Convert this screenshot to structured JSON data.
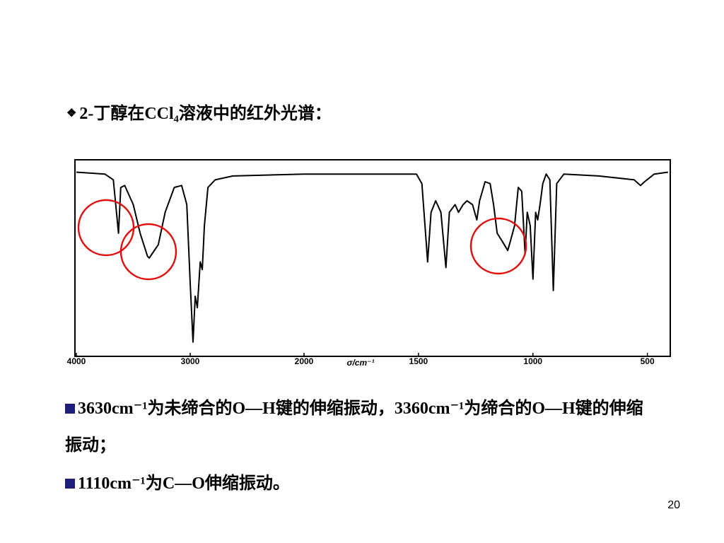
{
  "title": "2-丁醇在CCl₄溶液中的红外光谱：",
  "chart_data": {
    "type": "line",
    "xlabel": "σ/cm⁻¹",
    "xlim": [
      4000,
      400
    ],
    "x_scale_break": 2000,
    "ylim": [
      0,
      100
    ],
    "xticks": [
      4000,
      3000,
      2000,
      1500,
      1000,
      500
    ],
    "series": [
      {
        "color": "#000000",
        "x": [
          4000,
          3750,
          3675,
          3630,
          3610,
          3575,
          3500,
          3440,
          3375,
          3360,
          3280,
          3220,
          3140,
          3075,
          3030,
          3000,
          2975,
          2956,
          2937,
          2912,
          2894,
          2875,
          2844,
          2780,
          2625,
          2000,
          1509,
          1485,
          1469,
          1460,
          1445,
          1425,
          1402,
          1380,
          1365,
          1340,
          1325,
          1305,
          1288,
          1264,
          1245,
          1233,
          1209,
          1187,
          1172,
          1156,
          1135,
          1110,
          1098,
          1080,
          1064,
          1049,
          1034,
          1025,
          1012,
          1000,
          988,
          979,
          969,
          957,
          942,
          926,
          911,
          896,
          865,
          712,
          558,
          530,
          512,
          470,
          410
        ],
        "values": [
          95,
          94,
          91,
          63,
          87,
          88,
          78,
          63,
          51,
          50,
          57,
          74,
          87,
          88,
          78,
          37,
          6,
          30,
          24,
          48,
          44,
          67,
          87,
          91,
          93,
          94,
          94,
          89,
          63,
          48,
          74,
          80,
          74,
          45,
          74,
          78,
          74,
          78,
          80,
          78,
          70,
          80,
          90,
          89,
          78,
          63,
          59,
          54,
          59,
          67,
          87,
          85,
          52,
          74,
          67,
          39,
          74,
          70,
          78,
          89,
          94,
          91,
          33,
          89,
          94,
          93,
          91,
          88,
          90,
          94,
          95
        ]
      }
    ]
  },
  "bullets": [
    "3630cm⁻¹为未缔合的O—H键的伸缩振动，3360cm⁻¹为缔合的O—H键的伸缩振动；",
    "1110cm⁻¹为C—O伸缩振动。"
  ],
  "page_number": "20"
}
